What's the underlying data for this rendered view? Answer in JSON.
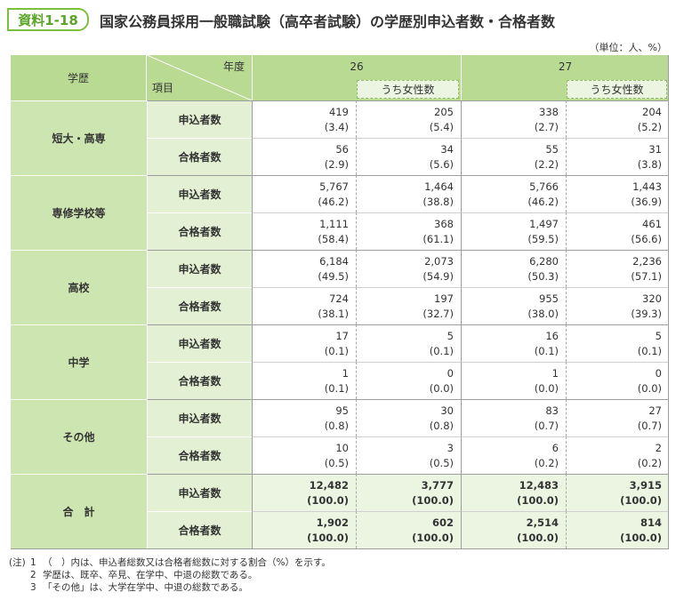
{
  "header": {
    "badge": "資料1-18",
    "title": "国家公務員採用一般職試験（高卒者試験）の学歴別申込者数・合格者数",
    "unit": "（単位：人、%）"
  },
  "table": {
    "education": "学歴",
    "year": "年度",
    "item": "項目",
    "years": [
      "26",
      "27"
    ],
    "female": "うち女性数",
    "groups": [
      {
        "label": "短大・高専",
        "rows": [
          {
            "item": "申込者数",
            "cells": [
              [
                "419",
                "(3.4)"
              ],
              [
                "205",
                "(5.4)"
              ],
              [
                "338",
                "(2.7)"
              ],
              [
                "204",
                "(5.2)"
              ]
            ]
          },
          {
            "item": "合格者数",
            "cells": [
              [
                "56",
                "(2.9)"
              ],
              [
                "34",
                "(5.6)"
              ],
              [
                "55",
                "(2.2)"
              ],
              [
                "31",
                "(3.8)"
              ]
            ]
          }
        ]
      },
      {
        "label": "専修学校等",
        "rows": [
          {
            "item": "申込者数",
            "cells": [
              [
                "5,767",
                "(46.2)"
              ],
              [
                "1,464",
                "(38.8)"
              ],
              [
                "5,766",
                "(46.2)"
              ],
              [
                "1,443",
                "(36.9)"
              ]
            ]
          },
          {
            "item": "合格者数",
            "cells": [
              [
                "1,111",
                "(58.4)"
              ],
              [
                "368",
                "(61.1)"
              ],
              [
                "1,497",
                "(59.5)"
              ],
              [
                "461",
                "(56.6)"
              ]
            ]
          }
        ]
      },
      {
        "label": "高校",
        "rows": [
          {
            "item": "申込者数",
            "cells": [
              [
                "6,184",
                "(49.5)"
              ],
              [
                "2,073",
                "(54.9)"
              ],
              [
                "6,280",
                "(50.3)"
              ],
              [
                "2,236",
                "(57.1)"
              ]
            ]
          },
          {
            "item": "合格者数",
            "cells": [
              [
                "724",
                "(38.1)"
              ],
              [
                "197",
                "(32.7)"
              ],
              [
                "955",
                "(38.0)"
              ],
              [
                "320",
                "(39.3)"
              ]
            ]
          }
        ]
      },
      {
        "label": "中学",
        "rows": [
          {
            "item": "申込者数",
            "cells": [
              [
                "17",
                "(0.1)"
              ],
              [
                "5",
                "(0.1)"
              ],
              [
                "16",
                "(0.1)"
              ],
              [
                "5",
                "(0.1)"
              ]
            ]
          },
          {
            "item": "合格者数",
            "cells": [
              [
                "1",
                "(0.1)"
              ],
              [
                "0",
                "(0.0)"
              ],
              [
                "1",
                "(0.0)"
              ],
              [
                "0",
                "(0.0)"
              ]
            ]
          }
        ]
      },
      {
        "label": "その他",
        "rows": [
          {
            "item": "申込者数",
            "cells": [
              [
                "95",
                "(0.8)"
              ],
              [
                "30",
                "(0.8)"
              ],
              [
                "83",
                "(0.7)"
              ],
              [
                "27",
                "(0.7)"
              ]
            ]
          },
          {
            "item": "合格者数",
            "cells": [
              [
                "10",
                "(0.5)"
              ],
              [
                "3",
                "(0.5)"
              ],
              [
                "6",
                "(0.2)"
              ],
              [
                "2",
                "(0.2)"
              ]
            ]
          }
        ]
      },
      {
        "label": "合　計",
        "total": true,
        "rows": [
          {
            "item": "申込者数",
            "cells": [
              [
                "12,482",
                "(100.0)"
              ],
              [
                "3,777",
                "(100.0)"
              ],
              [
                "12,483",
                "(100.0)"
              ],
              [
                "3,915",
                "(100.0)"
              ]
            ]
          },
          {
            "item": "合格者数",
            "cells": [
              [
                "1,902",
                "(100.0)"
              ],
              [
                "602",
                "(100.0)"
              ],
              [
                "2,514",
                "(100.0)"
              ],
              [
                "814",
                "(100.0)"
              ]
            ]
          }
        ]
      }
    ]
  },
  "notes": {
    "prefix": "(注)",
    "items": [
      {
        "number": "1",
        "text": "（　）内は、申込者総数又は合格者総数に対する割合（%）を示す。"
      },
      {
        "number": "2",
        "text": "学歴は、既卒、卒見、在学中、中退の総数である。"
      },
      {
        "number": "3",
        "text": "「その他」は、大学在学中、中退の総数である。"
      }
    ]
  }
}
